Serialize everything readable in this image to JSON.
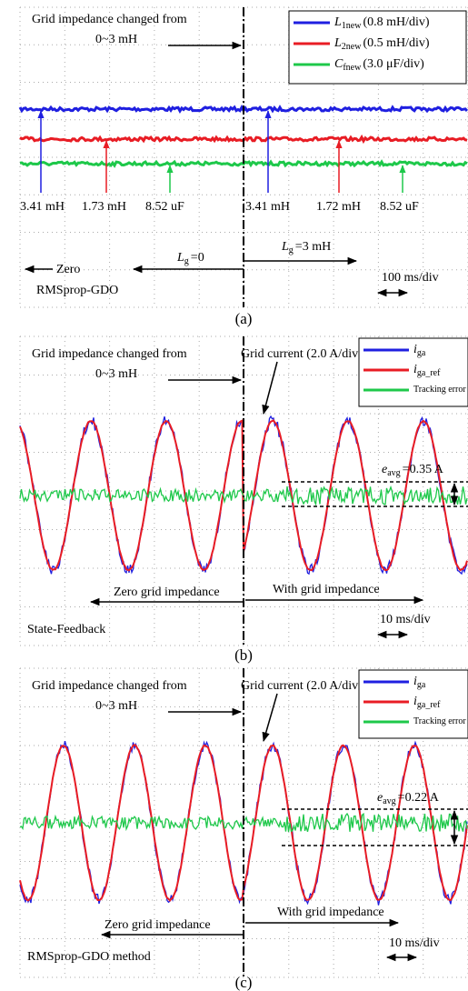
{
  "panels": [
    {
      "caption": "(a)",
      "title": "Grid impedance changed from",
      "range": "0~3 mH",
      "legend": [
        {
          "symbol": "L",
          "sub": "1new",
          "scale": "(0.8 mH/div)",
          "color": "#1f1fe0"
        },
        {
          "symbol": "L",
          "sub": "2new",
          "scale": "(0.5 mH/div)",
          "color": "#e81c24"
        },
        {
          "symbol": "C",
          "sub": "fnew",
          "scale": "(3.0 μF/div)",
          "color": "#1ec84a"
        }
      ],
      "readings_before": [
        "3.41 mH",
        "1.73 mH",
        "8.52 uF"
      ],
      "readings_after": [
        "3.41 mH",
        "1.72 mH",
        "8.52 uF"
      ],
      "left_note": "Zero",
      "method": "RMSprop-GDO",
      "before": {
        "symbol": "L",
        "sub": "g",
        "text": "=0"
      },
      "after": {
        "symbol": "L",
        "sub": "g",
        "text": "=3 mH"
      },
      "timebase": "100 ms/div"
    },
    {
      "caption": "(b)",
      "title": "Grid impedance changed from",
      "range": "0~3 mH",
      "current": "Grid current (2.0 A/div)",
      "legend": [
        {
          "symbol": "i",
          "sub": "ga",
          "color": "#1f1fe0"
        },
        {
          "symbol": "i",
          "sub": "ga_ref",
          "color": "#e81c24"
        },
        {
          "scale": "Tracking error",
          "color": "#1ec84a"
        }
      ],
      "error": {
        "symbol": "e",
        "sub": "avg",
        "text": "=0.35 A"
      },
      "before": "Zero grid impedance",
      "after": "With grid impedance",
      "method": "State-Feedback",
      "timebase": "10 ms/div"
    },
    {
      "caption": "(c)",
      "title": "Grid impedance changed from",
      "range": "0~3 mH",
      "current": "Grid current (2.0 A/div)",
      "legend": [
        {
          "symbol": "i",
          "sub": "ga",
          "color": "#1f1fe0"
        },
        {
          "symbol": "i",
          "sub": "ga_ref",
          "color": "#e81c24"
        },
        {
          "scale": "Tracking error",
          "color": "#1ec84a"
        }
      ],
      "error": {
        "symbol": "e",
        "sub": "avg",
        "text": "=0.22 A"
      },
      "before": "Zero grid impedance",
      "after": "With grid impedance",
      "method": "RMSprop-GDO method",
      "timebase": "10 ms/div"
    }
  ]
}
